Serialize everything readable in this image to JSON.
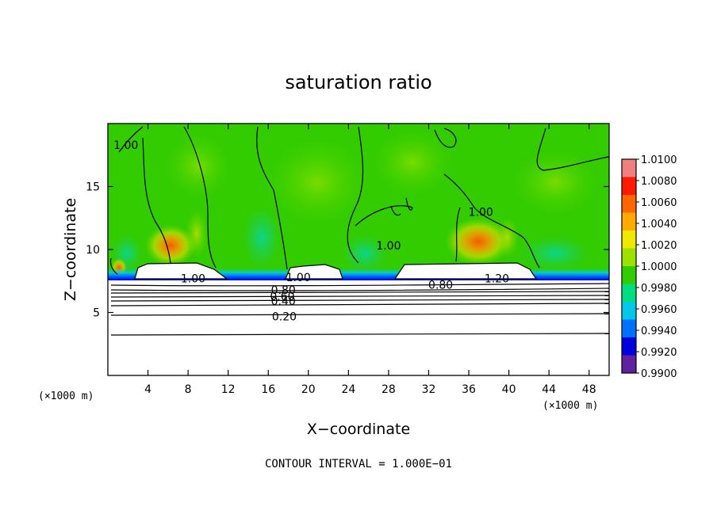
{
  "chart_data": {
    "type": "heatmap",
    "title": "saturation ratio",
    "xlabel": "X−coordinate",
    "ylabel": "Z−coordinate",
    "x_unit": "(×1000 m)",
    "y_unit": "(×1000 m)",
    "xlim": [
      0,
      50
    ],
    "ylim": [
      0,
      20
    ],
    "xticks": [
      4,
      8,
      12,
      16,
      20,
      24,
      28,
      32,
      36,
      40,
      44,
      48
    ],
    "yticks": [
      5,
      10,
      15
    ],
    "grid": false,
    "note": "CONTOUR INTERVAL = 1.000E−01",
    "colorbar": {
      "placement": "right",
      "min": 0.99,
      "max": 1.01,
      "labels": [
        "1.0100",
        "1.0080",
        "1.0060",
        "1.0040",
        "1.0020",
        "1.0000",
        "0.9980",
        "0.9960",
        "0.9940",
        "0.9920",
        "0.9900"
      ],
      "colors": [
        "#f08080",
        "#ff1a00",
        "#ff6600",
        "#ffaa00",
        "#f0e800",
        "#9ee000",
        "#32cc00",
        "#00dd80",
        "#00c8e6",
        "#0070ff",
        "#0000dd",
        "#6020a0"
      ]
    },
    "contour_labels": [
      {
        "text": "1.00",
        "x": 1.8,
        "y": 18.3
      },
      {
        "text": "1.00",
        "x": 8.5,
        "y": 7.7
      },
      {
        "text": "1.00",
        "x": 19.0,
        "y": 7.8
      },
      {
        "text": "0.80",
        "x": 17.5,
        "y": 6.8
      },
      {
        "text": "0.60",
        "x": 17.4,
        "y": 6.3
      },
      {
        "text": "0.40",
        "x": 17.5,
        "y": 5.9
      },
      {
        "text": "0.20",
        "x": 17.6,
        "y": 4.7
      },
      {
        "text": "1.00",
        "x": 28.0,
        "y": 10.3
      },
      {
        "text": "0.80",
        "x": 33.2,
        "y": 7.2
      },
      {
        "text": "1.20",
        "x": 38.8,
        "y": 7.7
      },
      {
        "text": "1.00",
        "x": 37.2,
        "y": 13.0
      }
    ]
  }
}
